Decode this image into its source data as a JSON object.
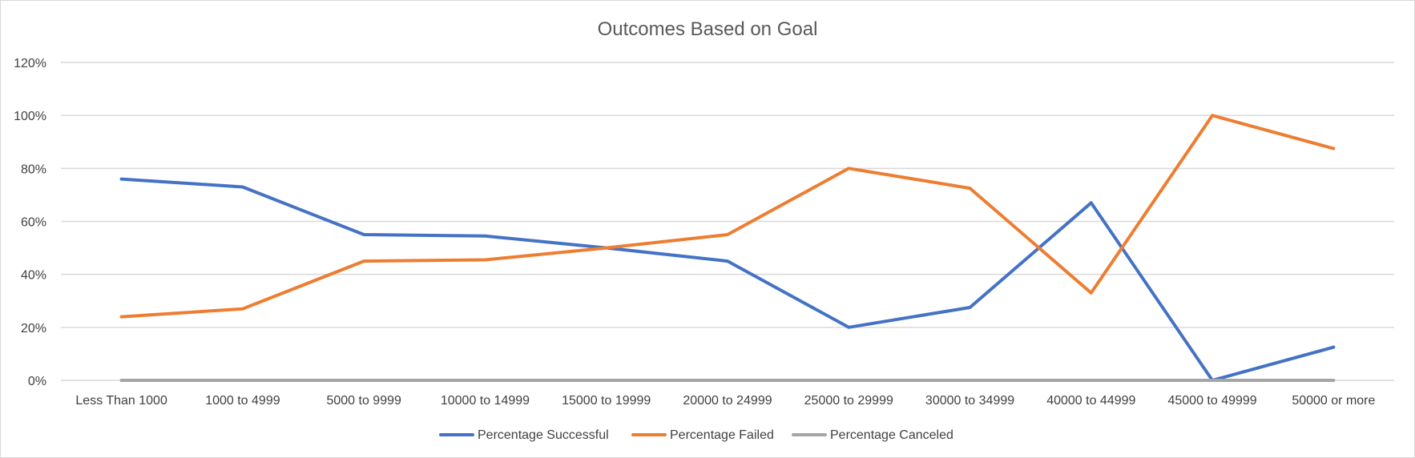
{
  "chart_data": {
    "type": "line",
    "title": "Outcomes Based on Goal",
    "xlabel": "",
    "ylabel": "",
    "categories": [
      "Less Than 1000",
      "1000 to 4999",
      "5000 to 9999",
      "10000 to 14999",
      "15000 to 19999",
      "20000 to 24999",
      "25000 to 29999",
      "30000 to 34999",
      "40000 to 44999",
      "45000 to 49999",
      "50000 or more"
    ],
    "series": [
      {
        "name": "Percentage Successful",
        "color": "#4472c4",
        "values": [
          76,
          73,
          55,
          54.5,
          50,
          45,
          20,
          27.5,
          67,
          0,
          12.5
        ]
      },
      {
        "name": "Percentage Failed",
        "color": "#ed7d31",
        "values": [
          24,
          27,
          45,
          45.5,
          50,
          55,
          80,
          72.5,
          33,
          100,
          87.5
        ]
      },
      {
        "name": "Percentage Canceled",
        "color": "#a5a5a5",
        "values": [
          0,
          0,
          0,
          0,
          0,
          0,
          0,
          0,
          0,
          0,
          0
        ]
      }
    ],
    "ylim": [
      0,
      120
    ],
    "yticks": [
      "0%",
      "20%",
      "40%",
      "60%",
      "80%",
      "100%",
      "120%"
    ],
    "grid": true,
    "legend": "bottom"
  }
}
